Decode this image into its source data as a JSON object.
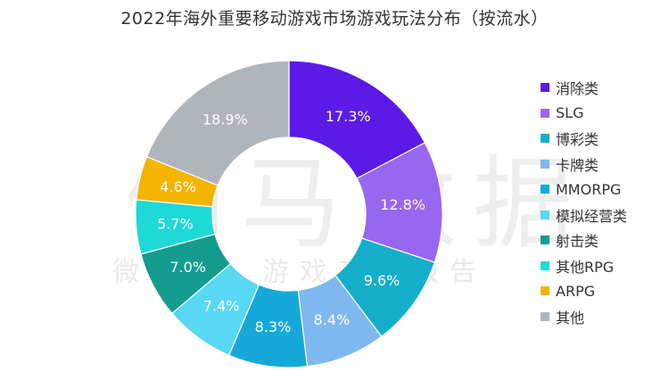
{
  "chart_data": {
    "type": "pie",
    "title": "2022年海外重要移动游戏市场游戏玩法分布（按流水）",
    "categories": [
      "消除类",
      "SLG",
      "博彩类",
      "卡牌类",
      "MMORPG",
      "模拟经营类",
      "射击类",
      "其他RPG",
      "ARPG",
      "其他"
    ],
    "values": [
      17.3,
      12.8,
      9.6,
      8.4,
      8.3,
      7.4,
      7.0,
      5.7,
      4.6,
      18.9
    ],
    "labels": [
      "17.3%",
      "12.8%",
      "9.6%",
      "8.4%",
      "8.3%",
      "7.4%",
      "7.0%",
      "5.7%",
      "4.6%",
      "18.9%"
    ],
    "colors": [
      "#5b1ae6",
      "#9966f0",
      "#14aecb",
      "#7eb8ee",
      "#17a8da",
      "#58d8f2",
      "#149c8f",
      "#1ed9d5",
      "#f4b400",
      "#b0b4bb"
    ],
    "legend_position": "right",
    "hole": true
  },
  "watermark": {
    "main": "伽马数据",
    "sub": "微信号：游戏产业报告"
  }
}
